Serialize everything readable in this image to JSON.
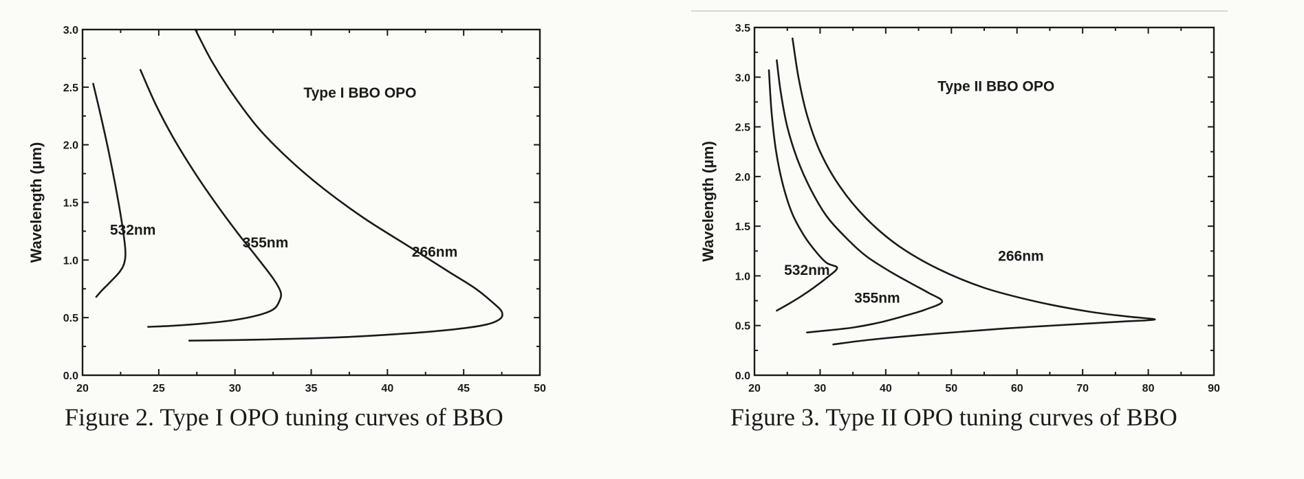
{
  "chart_data": [
    {
      "type": "line",
      "title": "",
      "caption": "Figure 2. Type I OPO tuning curves of BBO",
      "xlabel": "",
      "ylabel": "Wavelength (µm)",
      "xlim": [
        20,
        50
      ],
      "ylim": [
        0.0,
        3.0
      ],
      "xticks": [
        20,
        25,
        30,
        35,
        40,
        45,
        50
      ],
      "xtick_labels": [
        "20",
        "25",
        "30",
        "35",
        "40",
        "45",
        "50"
      ],
      "yticks": [
        0.0,
        0.5,
        1.0,
        1.5,
        2.0,
        2.5,
        3.0
      ],
      "ytick_labels": [
        "0.0",
        "0.5",
        "1.0",
        "1.5",
        "2.0",
        "2.5",
        "3.0"
      ],
      "grid": false,
      "legend": "none",
      "annotations": [
        {
          "text": "Type I BBO OPO",
          "x": 38.2,
          "y": 2.41
        },
        {
          "text": "532nm",
          "x": 23.3,
          "y": 1.22
        },
        {
          "text": "355nm",
          "x": 32.0,
          "y": 1.11
        },
        {
          "text": "266nm",
          "x": 43.1,
          "y": 1.03
        }
      ],
      "series": [
        {
          "label": "532nm",
          "x": [
            20.7,
            21.2,
            21.7,
            22.15,
            22.55,
            22.8,
            22.75,
            22.45,
            21.9,
            21.3,
            20.9
          ],
          "y": [
            2.53,
            2.25,
            1.95,
            1.65,
            1.35,
            1.1,
            0.98,
            0.9,
            0.82,
            0.74,
            0.68
          ]
        },
        {
          "label": "355nm",
          "x": [
            23.8,
            24.8,
            26.0,
            27.4,
            28.8,
            30.2,
            31.4,
            32.5,
            33.0,
            32.9,
            32.5,
            31.5,
            30.0,
            28.0,
            26.0,
            24.3
          ],
          "y": [
            2.65,
            2.35,
            2.05,
            1.75,
            1.48,
            1.23,
            1.03,
            0.84,
            0.72,
            0.64,
            0.57,
            0.52,
            0.48,
            0.45,
            0.43,
            0.42
          ]
        },
        {
          "label": "266nm",
          "x": [
            27.4,
            28.5,
            29.8,
            31.5,
            33.5,
            35.8,
            38.5,
            41.5,
            44.0,
            45.8,
            47.0,
            47.5,
            47.4,
            46.5,
            44.5,
            41.0,
            37.0,
            32.0,
            27.0
          ],
          "y": [
            3.0,
            2.72,
            2.45,
            2.15,
            1.88,
            1.62,
            1.36,
            1.11,
            0.9,
            0.75,
            0.62,
            0.55,
            0.49,
            0.44,
            0.4,
            0.36,
            0.33,
            0.31,
            0.3
          ]
        }
      ]
    },
    {
      "type": "line",
      "title": "",
      "caption": "Figure 3. Type II OPO tuning curves of BBO",
      "xlabel": "",
      "ylabel": "Wavelength (µm)",
      "xlim": [
        20,
        90
      ],
      "ylim": [
        0.0,
        3.5
      ],
      "xticks": [
        20,
        30,
        40,
        50,
        60,
        70,
        80,
        90
      ],
      "xtick_labels": [
        "20",
        "30",
        "40",
        "50",
        "60",
        "70",
        "80",
        "90"
      ],
      "yticks": [
        0.0,
        0.5,
        1.0,
        1.5,
        2.0,
        2.5,
        3.0,
        3.5
      ],
      "ytick_labels": [
        "0.0",
        "0.5",
        "1.0",
        "1.5",
        "2.0",
        "2.5",
        "3.0",
        "3.5"
      ],
      "grid": false,
      "legend": "none",
      "annotations": [
        {
          "text": "Type II BBO OPO",
          "x": 56.8,
          "y": 2.86
        },
        {
          "text": "532nm",
          "x": 28.0,
          "y": 1.01
        },
        {
          "text": "355nm",
          "x": 38.7,
          "y": 0.73
        },
        {
          "text": "266nm",
          "x": 60.6,
          "y": 1.15
        }
      ],
      "series": [
        {
          "label": "532nm",
          "x": [
            22.2,
            22.6,
            23.3,
            24.4,
            25.8,
            27.6,
            29.4,
            31.0,
            32.6,
            31.0,
            29.0,
            27.0,
            25.0,
            23.4
          ],
          "y": [
            3.07,
            2.65,
            2.25,
            1.9,
            1.62,
            1.4,
            1.24,
            1.13,
            1.08,
            0.98,
            0.88,
            0.79,
            0.71,
            0.65
          ]
        },
        {
          "label": "355nm",
          "x": [
            23.4,
            24.0,
            25.0,
            26.5,
            28.5,
            31.0,
            34.0,
            37.0,
            40.5,
            44.0,
            46.5,
            48.6,
            46.0,
            43.0,
            39.0,
            35.0,
            31.0,
            28.0
          ],
          "y": [
            3.17,
            2.85,
            2.5,
            2.18,
            1.88,
            1.6,
            1.38,
            1.2,
            1.05,
            0.92,
            0.83,
            0.74,
            0.66,
            0.6,
            0.53,
            0.48,
            0.45,
            0.43
          ]
        },
        {
          "label": "266nm",
          "x": [
            25.8,
            26.7,
            28.0,
            30.0,
            33.0,
            37.0,
            42.0,
            48.0,
            55.0,
            63.0,
            71.0,
            77.0,
            81.0,
            76.0,
            68.0,
            58.0,
            48.0,
            38.0,
            32.0
          ],
          "y": [
            3.39,
            3.0,
            2.62,
            2.25,
            1.9,
            1.58,
            1.3,
            1.07,
            0.88,
            0.74,
            0.64,
            0.59,
            0.56,
            0.54,
            0.51,
            0.47,
            0.42,
            0.36,
            0.31
          ]
        }
      ]
    }
  ]
}
